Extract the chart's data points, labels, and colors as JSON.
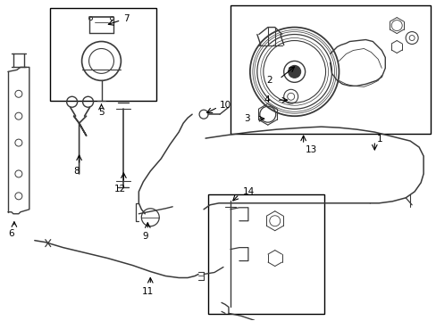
{
  "bg_color": "#ffffff",
  "line_color": "#3a3a3a",
  "box_color": "#000000",
  "label_color": "#000000",
  "fig_width": 4.89,
  "fig_height": 3.6,
  "dpi": 100,
  "font_size": 7.5,
  "lw_main": 1.1,
  "lw_thin": 0.7,
  "boxes": {
    "reservoir": [
      0.125,
      0.695,
      0.275,
      0.295
    ],
    "pump": [
      0.535,
      0.595,
      0.455,
      0.39
    ],
    "fitting14": [
      0.478,
      0.085,
      0.275,
      0.31
    ]
  }
}
